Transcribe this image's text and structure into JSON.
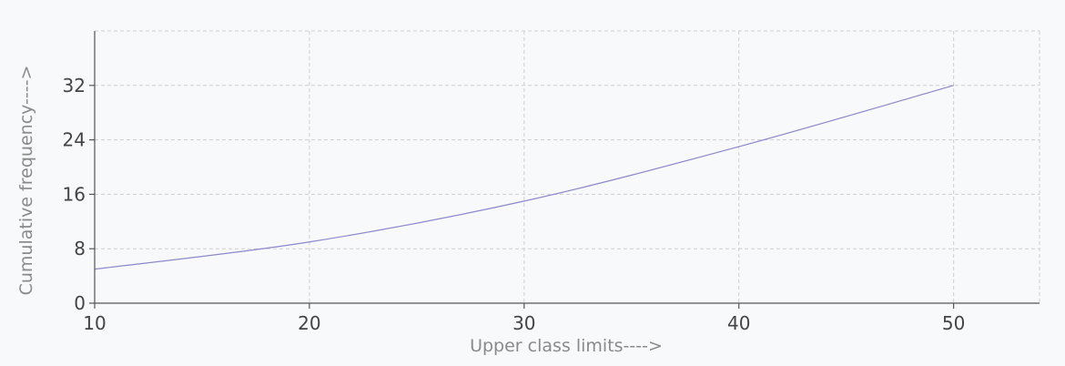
{
  "chart_data": {
    "type": "line",
    "title": "",
    "xlabel": "Upper class limits---->",
    "ylabel": "Cumulative frequency---->",
    "xlim": [
      10,
      54
    ],
    "ylim": [
      0,
      40
    ],
    "x_ticks": [
      10,
      20,
      30,
      40,
      50
    ],
    "y_ticks": [
      0,
      8,
      16,
      24,
      32
    ],
    "x_tick_labels": [
      "10",
      "20",
      "30",
      "40",
      "50"
    ],
    "y_tick_labels": [
      "0",
      "8",
      "16",
      "24",
      "32"
    ],
    "grid": true,
    "legend": "none",
    "series": [
      {
        "color": "#8b88cc",
        "points": [
          [
            10,
            5
          ],
          [
            20,
            9
          ],
          [
            30,
            15
          ],
          [
            40,
            23
          ],
          [
            50,
            32
          ]
        ]
      }
    ]
  }
}
